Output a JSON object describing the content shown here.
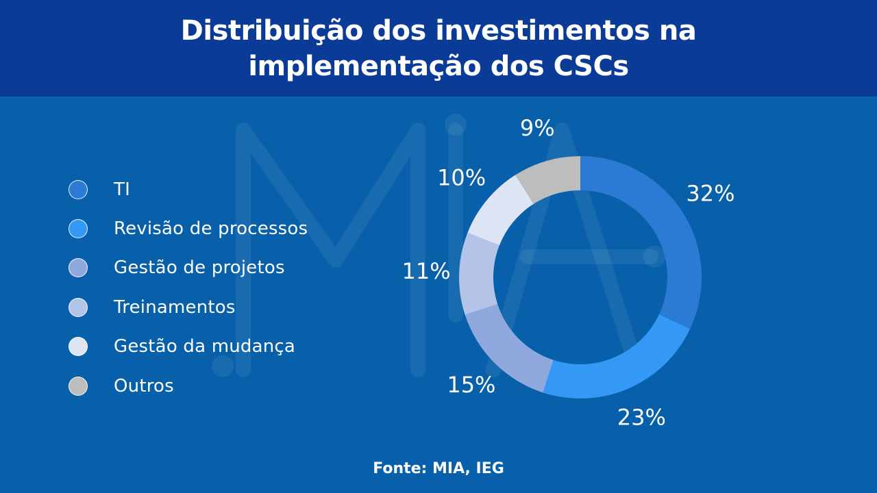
{
  "header": {
    "title": "Distribuição dos investimentos na implementação dos CSCs"
  },
  "watermark": {
    "text": "MIA"
  },
  "legend": {
    "items": [
      {
        "label": "TI",
        "color": "#2b7ad4"
      },
      {
        "label": "Revisão de processos",
        "color": "#3399f5"
      },
      {
        "label": "Gestão de projetos",
        "color": "#8fa9de"
      },
      {
        "label": "Treinamentos",
        "color": "#b3c4e8"
      },
      {
        "label": "Gestão da mudança",
        "color": "#dde5f5"
      },
      {
        "label": "Outros",
        "color": "#bdbdbd"
      }
    ]
  },
  "chart_data": {
    "type": "pie",
    "variant": "donut",
    "categories": [
      "TI",
      "Revisão de processos",
      "Gestão de projetos",
      "Treinamentos",
      "Gestão da mudança",
      "Outros"
    ],
    "values": [
      32,
      23,
      15,
      11,
      10,
      9
    ],
    "value_labels": [
      "32%",
      "23%",
      "15%",
      "11%",
      "10%",
      "9%"
    ],
    "colors": [
      "#2b7ad4",
      "#3399f5",
      "#8fa9de",
      "#b3c4e8",
      "#dde5f5",
      "#bdbdbd"
    ],
    "legend_position": "left"
  },
  "footer": {
    "source": "Fonte: MIA, IEG"
  }
}
